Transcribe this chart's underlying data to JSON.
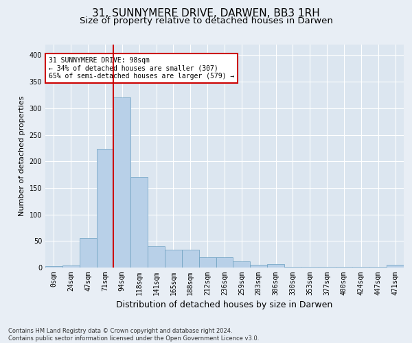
{
  "title": "31, SUNNYMERE DRIVE, DARWEN, BB3 1RH",
  "subtitle": "Size of property relative to detached houses in Darwen",
  "xlabel": "Distribution of detached houses by size in Darwen",
  "ylabel": "Number of detached properties",
  "footer_line1": "Contains HM Land Registry data © Crown copyright and database right 2024.",
  "footer_line2": "Contains public sector information licensed under the Open Government Licence v3.0.",
  "bin_labels": [
    "0sqm",
    "24sqm",
    "47sqm",
    "71sqm",
    "94sqm",
    "118sqm",
    "141sqm",
    "165sqm",
    "188sqm",
    "212sqm",
    "236sqm",
    "259sqm",
    "283sqm",
    "306sqm",
    "330sqm",
    "353sqm",
    "377sqm",
    "400sqm",
    "424sqm",
    "447sqm",
    "471sqm"
  ],
  "bar_values": [
    3,
    4,
    56,
    224,
    320,
    170,
    40,
    34,
    34,
    20,
    20,
    12,
    5,
    6,
    1,
    1,
    1,
    1,
    1,
    1,
    5
  ],
  "bar_color": "#b8d0e8",
  "bar_edge_color": "#6a9fc0",
  "highlight_color": "#cc0000",
  "annotation_text": "31 SUNNYMERE DRIVE: 98sqm\n← 34% of detached houses are smaller (307)\n65% of semi-detached houses are larger (579) →",
  "annotation_box_color": "#ffffff",
  "annotation_box_edge": "#cc0000",
  "ylim": [
    0,
    420
  ],
  "yticks": [
    0,
    50,
    100,
    150,
    200,
    250,
    300,
    350,
    400
  ],
  "bg_color": "#e8eef5",
  "plot_bg_color": "#dce6f0",
  "grid_color": "#ffffff",
  "title_fontsize": 11,
  "subtitle_fontsize": 9.5,
  "xlabel_fontsize": 9,
  "ylabel_fontsize": 8,
  "tick_fontsize": 7,
  "footer_fontsize": 6,
  "annotation_fontsize": 7
}
